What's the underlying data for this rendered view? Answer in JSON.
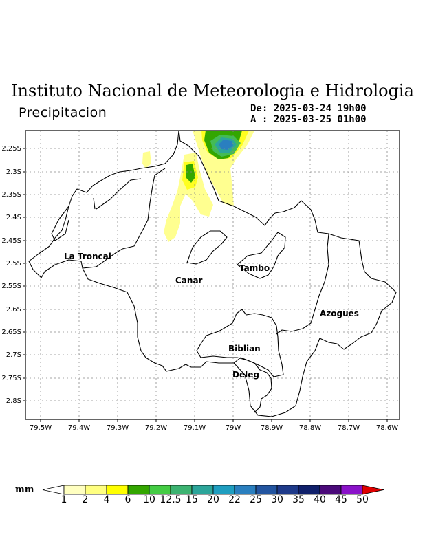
{
  "header": {
    "title": "Instituto Nacional de Meteorologia e Hidrologia",
    "subtitle": "Precipitacion",
    "date_from": "De: 2025-03-24 19h00",
    "date_to": "A : 2025-03-25 01h00"
  },
  "map": {
    "lon_ticks": [
      "79.5W",
      "79.4W",
      "79.3W",
      "79.2W",
      "79.1W",
      "79W",
      "78.9W",
      "78.8W",
      "78.7W",
      "78.6W"
    ],
    "lat_ticks": [
      "2.25S",
      "2.3S",
      "2.35S",
      "2.4S",
      "2.45S",
      "2.5S",
      "2.55S",
      "2.6S",
      "2.65S",
      "2.7S",
      "2.75S",
      "2.8S"
    ],
    "place_labels": {
      "la_troncal": "La Troncal",
      "canar": "Canar",
      "tambo": "Tambo",
      "azogues": "Azogues",
      "biblian": "Biblian",
      "deleg": "Deleg"
    },
    "grid": true
  },
  "colorbar": {
    "unit": "mm",
    "labels": [
      "1",
      "2",
      "4",
      "6",
      "10",
      "12.5",
      "15",
      "20",
      "22",
      "25",
      "30",
      "35",
      "40",
      "45",
      "50"
    ],
    "colors": [
      "#ffffff",
      "#ffffc0",
      "#ffff80",
      "#ffff00",
      "#33a600",
      "#44cc44",
      "#3cb371",
      "#2ca59a",
      "#1f9ec0",
      "#2a7fbf",
      "#2355a0",
      "#1e3a8a",
      "#10206b",
      "#4b0a7a",
      "#8a12c9",
      "#e00000"
    ]
  }
}
